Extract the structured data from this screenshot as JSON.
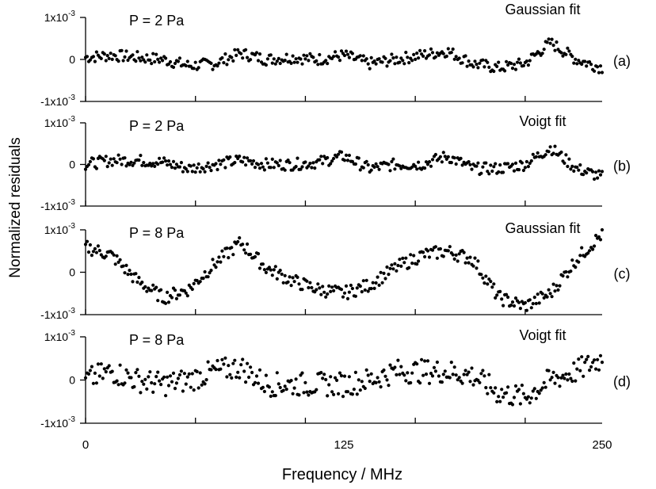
{
  "chart_data": [
    {
      "type": "scatter",
      "panel_label": "(a)",
      "pressure_label": "P = 2 Pa",
      "fit_label": "Gaussian fit",
      "ylim": [
        -0.001,
        0.001
      ],
      "yticks": [
        {
          "value": 0.001,
          "base": "1x10",
          "exp": "-3"
        },
        {
          "value": 0,
          "base": "0",
          "exp": ""
        },
        {
          "value": -0.001,
          "base": "-1x10",
          "exp": "-3"
        }
      ],
      "series": [
        {
          "x": [
            0,
            12.5,
            25,
            37.5,
            50,
            62.5,
            75,
            87.5,
            100,
            112.5,
            125,
            137.5,
            150,
            162.5,
            175,
            187.5,
            200,
            212.5,
            225,
            237.5,
            250
          ],
          "y": [
            5e-05,
            0.0001,
            5e-05,
            0.0,
            -0.00015,
            -0.0001,
            0.00015,
            0.0,
            5e-05,
            0.0,
            0.0001,
            -0.0001,
            0.0,
            0.0001,
            0.0002,
            -0.0001,
            -0.0002,
            -0.0001,
            0.0004,
            0.0,
            -0.0002
          ]
        }
      ]
    },
    {
      "type": "scatter",
      "panel_label": "(b)",
      "pressure_label": "P = 2 Pa",
      "fit_label": "Voigt fit",
      "ylim": [
        -0.001,
        0.001
      ],
      "yticks": [
        {
          "value": 0.001,
          "base": "1x10",
          "exp": "-3"
        },
        {
          "value": 0,
          "base": "0",
          "exp": ""
        },
        {
          "value": -0.001,
          "base": "-1x10",
          "exp": "-3"
        }
      ],
      "series": [
        {
          "x": [
            0,
            12.5,
            25,
            37.5,
            50,
            62.5,
            75,
            87.5,
            100,
            112.5,
            125,
            137.5,
            150,
            162.5,
            175,
            187.5,
            200,
            212.5,
            225,
            237.5,
            250
          ],
          "y": [
            0.0,
            0.0001,
            0.0001,
            5e-05,
            -0.0001,
            0.0,
            0.0001,
            0.0,
            0.0,
            5e-05,
            0.0002,
            -0.0001,
            0.0,
            0.0,
            0.0002,
            -0.0001,
            -0.0001,
            0.0,
            0.0004,
            -0.0001,
            -0.0003
          ]
        }
      ]
    },
    {
      "type": "scatter",
      "panel_label": "(c)",
      "pressure_label": "P = 8 Pa",
      "fit_label": "Gaussian fit",
      "ylim": [
        -0.001,
        0.001
      ],
      "yticks": [
        {
          "value": 0.001,
          "base": "1x10",
          "exp": "-3"
        },
        {
          "value": 0,
          "base": "0",
          "exp": ""
        },
        {
          "value": -0.001,
          "base": "-1x10",
          "exp": "-3"
        }
      ],
      "series": [
        {
          "x": [
            0,
            12.5,
            25,
            37.5,
            50,
            62.5,
            75,
            87.5,
            100,
            112.5,
            125,
            137.5,
            150,
            162.5,
            175,
            187.5,
            200,
            212.5,
            225,
            237.5,
            250
          ],
          "y": [
            0.0006,
            0.0004,
            -0.0002,
            -0.0006,
            -0.0004,
            0.0002,
            0.0007,
            0.0001,
            -0.0002,
            -0.0004,
            -0.0005,
            -0.0003,
            0.0001,
            0.0004,
            0.0005,
            0.0003,
            -0.0006,
            -0.0008,
            -0.0005,
            0.0003,
            0.0009
          ]
        }
      ]
    },
    {
      "type": "scatter",
      "panel_label": "(d)",
      "pressure_label": "P = 8 Pa",
      "fit_label": "Voigt fit",
      "ylim": [
        -0.001,
        0.001
      ],
      "yticks": [
        {
          "value": 0.001,
          "base": "1x10",
          "exp": "-3"
        },
        {
          "value": 0,
          "base": "0",
          "exp": ""
        },
        {
          "value": -0.001,
          "base": "-1x10",
          "exp": "-3"
        }
      ],
      "series": [
        {
          "x": [
            0,
            12.5,
            25,
            37.5,
            50,
            62.5,
            75,
            87.5,
            100,
            112.5,
            125,
            137.5,
            150,
            162.5,
            175,
            187.5,
            200,
            212.5,
            225,
            237.5,
            250
          ],
          "y": [
            0.0,
            0.0002,
            0.0,
            -0.0001,
            0.0,
            0.0002,
            0.0003,
            -0.0001,
            -0.0001,
            -0.0001,
            -0.0001,
            0.0,
            0.0002,
            0.0002,
            0.0002,
            0.0001,
            -0.0003,
            -0.0004,
            0.0,
            0.0002,
            0.0005
          ]
        }
      ]
    }
  ],
  "shared": {
    "ylabel": "Normalized residuals",
    "xlabel": "Frequency / MHz",
    "xlim": [
      0,
      250
    ],
    "xticks": [
      0,
      125,
      250
    ],
    "xtick_labels": [
      "0",
      "125",
      "250"
    ]
  }
}
